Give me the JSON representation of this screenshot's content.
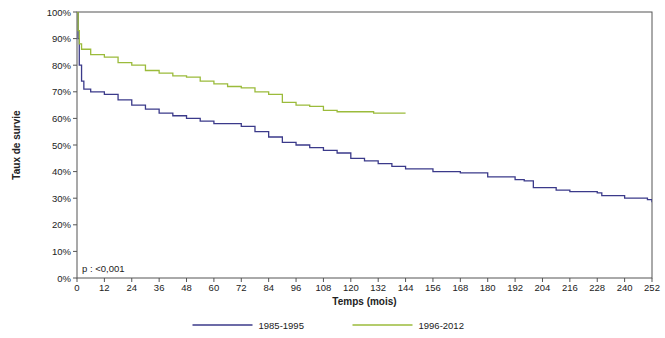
{
  "chart_data": {
    "type": "step",
    "x_label": "Temps (mois)",
    "y_label": "Taux de survie",
    "annotation": "p : <0,001",
    "xlim": [
      0,
      252
    ],
    "ylim": [
      0,
      100
    ],
    "xticks": [
      0,
      12,
      24,
      36,
      48,
      60,
      72,
      84,
      96,
      108,
      120,
      132,
      144,
      156,
      168,
      180,
      192,
      204,
      216,
      228,
      240,
      252
    ],
    "yticks": [
      {
        "value": 0,
        "label": "0%"
      },
      {
        "value": 10,
        "label": "10%"
      },
      {
        "value": 20,
        "label": "20%"
      },
      {
        "value": 30,
        "label": "30%"
      },
      {
        "value": 40,
        "label": "40%"
      },
      {
        "value": 50,
        "label": "50%"
      },
      {
        "value": 60,
        "label": "60%"
      },
      {
        "value": 70,
        "label": "70%"
      },
      {
        "value": 80,
        "label": "80%"
      },
      {
        "value": 90,
        "label": "90%"
      },
      {
        "value": 100,
        "label": "100%"
      }
    ],
    "grid": false,
    "legend": "bottom",
    "series": [
      {
        "name": "1985-1995",
        "color": "#3b3a8a",
        "x": [
          0,
          0.5,
          1,
          2,
          3,
          6,
          12,
          18,
          24,
          30,
          36,
          42,
          48,
          54,
          60,
          72,
          78,
          84,
          90,
          96,
          102,
          108,
          114,
          120,
          126,
          132,
          138,
          144,
          156,
          168,
          180,
          192,
          196,
          200,
          210,
          216,
          228,
          230,
          240,
          250,
          252
        ],
        "values": [
          100,
          90,
          80,
          74,
          71,
          70,
          69,
          67,
          65,
          63.5,
          62,
          61,
          60,
          59,
          58,
          57,
          55,
          53,
          51,
          50,
          49,
          48,
          47,
          45,
          44,
          43,
          42,
          41,
          40,
          39.5,
          38,
          37,
          36.5,
          34,
          33,
          32.5,
          32,
          31,
          30,
          29.5,
          28.5
        ]
      },
      {
        "name": "1996-2012",
        "color": "#9bbb3b",
        "x": [
          0,
          0.5,
          1,
          2,
          6,
          12,
          18,
          24,
          30,
          36,
          42,
          48,
          54,
          60,
          66,
          72,
          78,
          84,
          90,
          96,
          102,
          108,
          114,
          130,
          144
        ],
        "values": [
          100,
          93,
          88,
          86,
          84,
          83,
          81,
          80,
          78,
          77,
          76,
          75.5,
          74,
          73,
          72,
          71.5,
          70,
          69,
          66,
          65,
          64.5,
          63,
          62.5,
          62,
          62
        ]
      }
    ]
  }
}
